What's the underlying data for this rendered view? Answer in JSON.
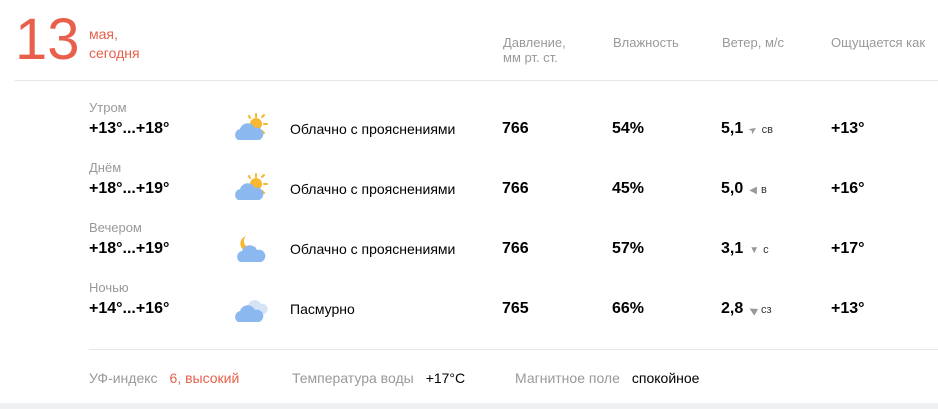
{
  "date": {
    "day": "13",
    "month": "мая,",
    "label": "сегодня"
  },
  "headers": {
    "pressure": "Давление,",
    "pressure_unit": "мм рт. ст.",
    "humidity": "Влажность",
    "wind": "Ветер, м/с",
    "feels": "Ощущается как"
  },
  "rows": [
    {
      "part": "Утром",
      "temp": "+13°...+18°",
      "icon": "partly-cloudy-day-icon",
      "desc": "Облачно с прояснениями",
      "pressure": "766",
      "humidity": "54%",
      "wind": "5,1",
      "wind_arrow": "➤",
      "wind_dir": "св",
      "feels": "+13°"
    },
    {
      "part": "Днём",
      "temp": "+18°...+19°",
      "icon": "partly-cloudy-day-icon",
      "desc": "Облачно с прояснениями",
      "pressure": "766",
      "humidity": "45%",
      "wind": "5,0",
      "wind_arrow": "◀",
      "wind_dir": "в",
      "feels": "+16°"
    },
    {
      "part": "Вечером",
      "temp": "+18°...+19°",
      "icon": "partly-cloudy-night-icon",
      "desc": "Облачно с прояснениями",
      "pressure": "766",
      "humidity": "57%",
      "wind": "3,1",
      "wind_arrow": "▼",
      "wind_dir": "с",
      "feels": "+17°"
    },
    {
      "part": "Ночью",
      "temp": "+14°...+16°",
      "icon": "overcast-icon",
      "desc": "Пасмурно",
      "pressure": "765",
      "humidity": "66%",
      "wind": "2,8",
      "wind_arrow": "◀",
      "wind_dir": "сз",
      "feels": "+13°"
    }
  ],
  "footer": {
    "uv_label": "УФ-индекс",
    "uv_value": "6, высокий",
    "water_label": "Температура воды",
    "water_value": "+17°C",
    "magnet_label": "Магнитное поле",
    "magnet_value": "спокойное"
  },
  "colors": {
    "accent": "#e8604c",
    "cloud": "#8cb8f0",
    "sun": "#f7b731"
  }
}
